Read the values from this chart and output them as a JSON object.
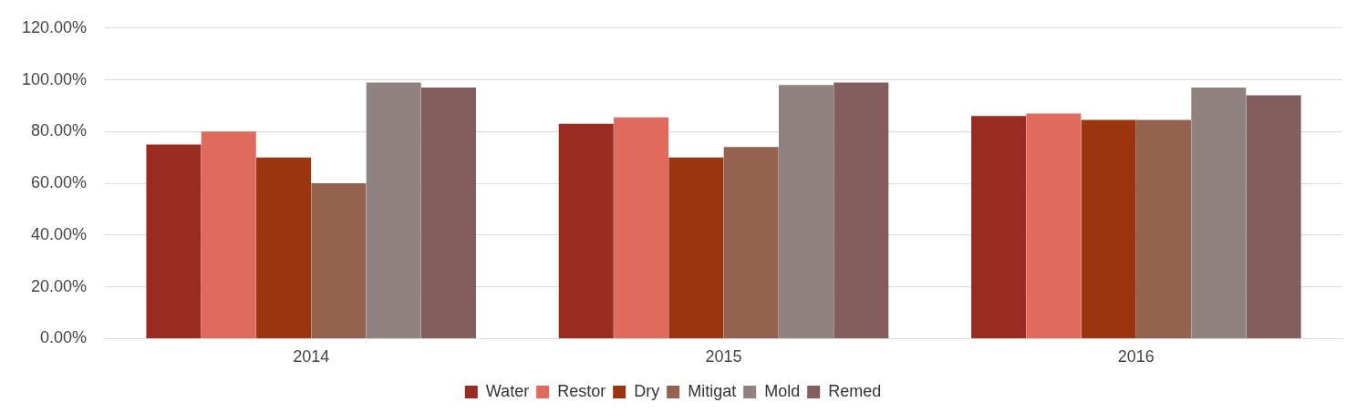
{
  "chart_data": {
    "type": "bar",
    "categories": [
      "2014",
      "2015",
      "2016"
    ],
    "series": [
      {
        "name": "Water",
        "color": "#992b20",
        "values": [
          75,
          83,
          86
        ]
      },
      {
        "name": "Restor",
        "color": "#e06b5c",
        "values": [
          80,
          85.5,
          87
        ]
      },
      {
        "name": "Dry",
        "color": "#9a3510",
        "values": [
          70,
          70,
          84.5
        ]
      },
      {
        "name": "Mitigat",
        "color": "#956250",
        "values": [
          60,
          74,
          84.5
        ]
      },
      {
        "name": "Mold",
        "color": "#8f8280",
        "values": [
          99,
          98,
          97
        ]
      },
      {
        "name": "Remed",
        "color": "#845e5c",
        "values": [
          97,
          99,
          94
        ]
      }
    ],
    "ylim": [
      0,
      120
    ],
    "yticks": [
      {
        "value": 0,
        "label": "0.00%"
      },
      {
        "value": 20,
        "label": "20.00%"
      },
      {
        "value": 40,
        "label": "40.00%"
      },
      {
        "value": 60,
        "label": "60.00%"
      },
      {
        "value": 80,
        "label": "80.00%"
      },
      {
        "value": 100,
        "label": "100.00%"
      },
      {
        "value": 120,
        "label": "120.00%"
      }
    ],
    "grid": "y",
    "legend": "bottom"
  }
}
